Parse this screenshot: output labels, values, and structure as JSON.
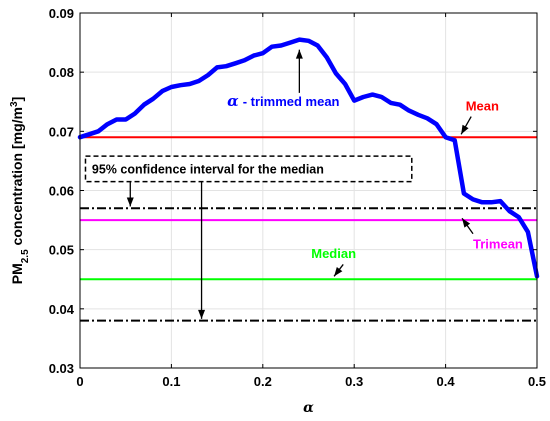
{
  "chart_data": {
    "type": "line",
    "xlim": [
      0,
      0.5
    ],
    "ylim": [
      0.03,
      0.09
    ],
    "xticks": [
      0,
      0.1,
      0.2,
      0.3,
      0.4,
      0.5
    ],
    "yticks": [
      0.03,
      0.04,
      0.05,
      0.06,
      0.07,
      0.08,
      0.09
    ],
    "xtick_labels": [
      "0",
      "0.1",
      "0.2",
      "0.3",
      "0.4",
      "0.5"
    ],
    "ytick_labels": [
      "0.03",
      "0.04",
      "0.05",
      "0.06",
      "0.07",
      "0.08",
      "0.09"
    ],
    "xlabel": "α",
    "ylabel": {
      "prefix": "PM",
      "sub": "2.5",
      "middle": " concentration [mg/m",
      "sup": "3",
      "suffix": "]"
    },
    "grid": true,
    "series": [
      {
        "name": "α - trimmed mean",
        "color": "#0000ff",
        "style": "solid-thick",
        "x": [
          0,
          0.01,
          0.02,
          0.03,
          0.04,
          0.05,
          0.06,
          0.07,
          0.08,
          0.09,
          0.1,
          0.11,
          0.12,
          0.13,
          0.14,
          0.15,
          0.16,
          0.17,
          0.18,
          0.19,
          0.2,
          0.21,
          0.22,
          0.23,
          0.24,
          0.25,
          0.26,
          0.27,
          0.28,
          0.29,
          0.3,
          0.31,
          0.32,
          0.33,
          0.34,
          0.35,
          0.36,
          0.37,
          0.38,
          0.39,
          0.4,
          0.41,
          0.42,
          0.43,
          0.44,
          0.45,
          0.46,
          0.47,
          0.48,
          0.49,
          0.5
        ],
        "y": [
          0.069,
          0.0695,
          0.07,
          0.0712,
          0.072,
          0.072,
          0.073,
          0.0745,
          0.0755,
          0.0768,
          0.0775,
          0.0778,
          0.078,
          0.0785,
          0.0795,
          0.0808,
          0.081,
          0.0815,
          0.082,
          0.0828,
          0.0832,
          0.0843,
          0.0845,
          0.085,
          0.0855,
          0.0853,
          0.0845,
          0.0825,
          0.0798,
          0.078,
          0.0752,
          0.0758,
          0.0762,
          0.0758,
          0.0748,
          0.0745,
          0.0735,
          0.0728,
          0.0722,
          0.0712,
          0.069,
          0.0685,
          0.0595,
          0.0585,
          0.058,
          0.058,
          0.0582,
          0.0565,
          0.0555,
          0.053,
          0.0455
        ]
      },
      {
        "name": "Mean",
        "color": "#ff0000",
        "style": "solid",
        "y": 0.069
      },
      {
        "name": "Trimean",
        "color": "#ff00ff",
        "style": "solid",
        "y": 0.055
      },
      {
        "name": "Median",
        "color": "#00ff00",
        "style": "solid",
        "y": 0.045
      },
      {
        "name": "95% confidence interval for the median",
        "color": "#000000",
        "style": "dashdot",
        "y": [
          0.057,
          0.038
        ]
      }
    ],
    "annotations": {
      "trimmed_mean": {
        "label": "- trimmed mean",
        "alpha_symbol": "α",
        "color": "#0000ff"
      },
      "mean": {
        "label": "Mean",
        "color": "#ff0000"
      },
      "trimean": {
        "label": "Trimean",
        "color": "#ff00ff"
      },
      "median": {
        "label": "Median",
        "color": "#00ff00"
      },
      "ci": {
        "label": "95% confidence interval for the median",
        "color": "#000000"
      }
    }
  }
}
